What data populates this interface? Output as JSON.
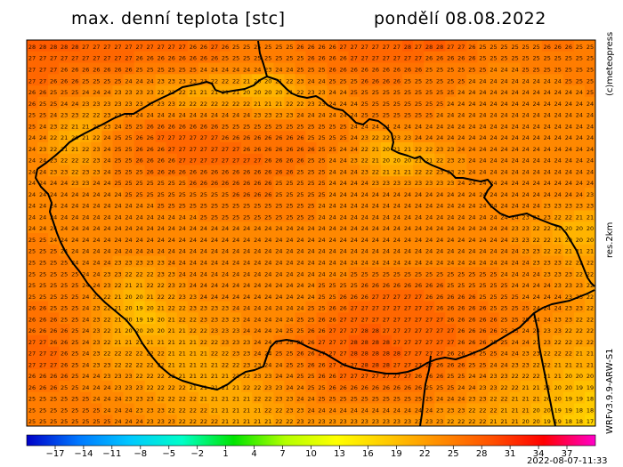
{
  "header": {
    "title": "max. denní teplota [stc]",
    "date": "pondělí 08.08.2022"
  },
  "side_labels": {
    "credit": "(c)meteopress",
    "resolution": "res.2km",
    "model": "WRFv3.9.9-ARW-S1"
  },
  "footer": {
    "run_time": "2022-08-07-11:33"
  },
  "colorbar": {
    "ticks": [
      "−17",
      "−14",
      "−11",
      "−8",
      "−5",
      "−2",
      "1",
      "4",
      "7",
      "10",
      "13",
      "16",
      "19",
      "22",
      "25",
      "28",
      "31",
      "34",
      "37"
    ],
    "tick_values": [
      -17,
      -14,
      -11,
      -8,
      -5,
      -2,
      1,
      4,
      7,
      10,
      13,
      16,
      19,
      22,
      25,
      28,
      31,
      34,
      37
    ],
    "min": -20,
    "max": 40,
    "stops": [
      "#0000c8",
      "#0078ff",
      "#00c8ff",
      "#00ffc8",
      "#00e400",
      "#b4ff00",
      "#ffff00",
      "#ffc800",
      "#ff8c00",
      "#ff5000",
      "#ff0000",
      "#ff00c8"
    ]
  },
  "grid_values": [
    [
      28,
      28,
      28,
      28,
      28,
      27,
      27,
      27,
      27,
      27,
      27,
      27,
      27,
      27,
      27,
      26,
      26,
      27,
      26,
      25,
      25,
      25,
      25,
      25,
      25,
      26,
      26,
      26,
      26,
      27,
      27,
      27,
      27,
      27,
      27,
      28,
      27,
      28,
      28,
      27,
      27,
      26,
      25,
      25,
      25,
      25,
      25,
      25,
      26,
      26,
      26,
      25,
      25
    ],
    [
      27,
      27,
      27,
      27,
      27,
      27,
      27,
      27,
      27,
      27,
      26,
      26,
      26,
      26,
      26,
      26,
      26,
      26,
      25,
      25,
      25,
      25,
      25,
      25,
      25,
      25,
      26,
      26,
      26,
      26,
      27,
      27,
      27,
      27,
      27,
      27,
      27,
      26,
      26,
      26,
      26,
      26,
      25,
      25,
      25,
      25,
      25,
      25,
      25,
      25,
      25,
      25,
      25
    ],
    [
      27,
      27,
      27,
      26,
      26,
      26,
      26,
      26,
      26,
      26,
      25,
      25,
      25,
      25,
      25,
      25,
      24,
      24,
      24,
      24,
      24,
      24,
      23,
      24,
      24,
      25,
      25,
      25,
      26,
      26,
      26,
      26,
      26,
      26,
      26,
      26,
      26,
      25,
      25,
      25,
      25,
      25,
      25,
      24,
      24,
      24,
      25,
      25,
      25,
      25,
      25,
      25,
      25
    ],
    [
      27,
      27,
      26,
      26,
      26,
      25,
      25,
      25,
      25,
      24,
      24,
      24,
      23,
      23,
      23,
      23,
      23,
      22,
      22,
      22,
      21,
      20,
      20,
      21,
      22,
      23,
      24,
      24,
      25,
      25,
      25,
      26,
      26,
      26,
      26,
      25,
      25,
      25,
      25,
      25,
      25,
      24,
      24,
      24,
      24,
      24,
      24,
      24,
      24,
      24,
      25,
      25,
      25
    ],
    [
      26,
      26,
      25,
      25,
      25,
      24,
      24,
      24,
      23,
      23,
      23,
      23,
      22,
      22,
      22,
      21,
      21,
      21,
      21,
      21,
      20,
      20,
      20,
      20,
      21,
      22,
      23,
      23,
      24,
      24,
      25,
      25,
      25,
      25,
      25,
      25,
      25,
      25,
      25,
      25,
      24,
      24,
      24,
      24,
      24,
      24,
      24,
      24,
      24,
      24,
      24,
      24,
      25
    ],
    [
      26,
      25,
      25,
      24,
      24,
      23,
      23,
      23,
      23,
      23,
      23,
      23,
      23,
      23,
      22,
      22,
      22,
      22,
      22,
      22,
      22,
      21,
      21,
      21,
      22,
      22,
      23,
      23,
      24,
      24,
      24,
      25,
      25,
      25,
      25,
      25,
      25,
      25,
      25,
      24,
      24,
      24,
      24,
      24,
      24,
      24,
      24,
      24,
      24,
      24,
      24,
      24,
      24
    ],
    [
      25,
      25,
      24,
      23,
      23,
      22,
      22,
      23,
      23,
      24,
      24,
      24,
      24,
      24,
      24,
      24,
      24,
      24,
      24,
      24,
      24,
      23,
      23,
      23,
      23,
      24,
      24,
      24,
      24,
      24,
      24,
      25,
      25,
      25,
      25,
      25,
      25,
      25,
      24,
      24,
      24,
      24,
      24,
      24,
      24,
      24,
      24,
      24,
      24,
      24,
      24,
      24,
      24
    ],
    [
      25,
      24,
      23,
      22,
      21,
      21,
      22,
      23,
      24,
      25,
      25,
      26,
      26,
      26,
      26,
      26,
      26,
      26,
      25,
      25,
      25,
      25,
      25,
      25,
      25,
      25,
      25,
      25,
      25,
      25,
      24,
      24,
      24,
      24,
      24,
      24,
      24,
      24,
      24,
      24,
      24,
      24,
      24,
      24,
      24,
      24,
      24,
      24,
      24,
      24,
      24,
      24,
      24
    ],
    [
      24,
      24,
      22,
      21,
      20,
      21,
      22,
      24,
      25,
      25,
      26,
      26,
      27,
      27,
      27,
      27,
      27,
      27,
      26,
      26,
      26,
      26,
      26,
      26,
      26,
      26,
      25,
      25,
      25,
      25,
      24,
      23,
      22,
      22,
      23,
      23,
      24,
      24,
      24,
      24,
      24,
      24,
      24,
      24,
      24,
      24,
      24,
      24,
      24,
      24,
      24,
      24,
      24
    ],
    [
      24,
      23,
      22,
      21,
      21,
      22,
      23,
      24,
      25,
      25,
      26,
      26,
      26,
      27,
      27,
      27,
      27,
      27,
      27,
      27,
      26,
      26,
      26,
      26,
      26,
      26,
      26,
      25,
      25,
      24,
      24,
      22,
      21,
      20,
      21,
      21,
      22,
      22,
      23,
      23,
      24,
      24,
      24,
      24,
      24,
      24,
      24,
      24,
      24,
      24,
      24,
      24,
      24
    ],
    [
      24,
      24,
      23,
      22,
      22,
      22,
      23,
      24,
      25,
      25,
      26,
      26,
      26,
      26,
      27,
      27,
      27,
      27,
      27,
      27,
      27,
      27,
      26,
      26,
      26,
      26,
      25,
      25,
      24,
      24,
      23,
      22,
      21,
      20,
      20,
      20,
      21,
      21,
      22,
      23,
      23,
      24,
      24,
      24,
      24,
      24,
      24,
      24,
      24,
      24,
      24,
      24,
      24
    ],
    [
      24,
      24,
      23,
      23,
      22,
      23,
      23,
      24,
      25,
      25,
      25,
      26,
      26,
      26,
      26,
      26,
      26,
      26,
      26,
      26,
      26,
      26,
      26,
      26,
      26,
      25,
      25,
      25,
      24,
      24,
      24,
      23,
      22,
      21,
      21,
      21,
      22,
      22,
      23,
      23,
      23,
      24,
      24,
      24,
      24,
      24,
      24,
      24,
      24,
      24,
      24,
      24,
      24
    ],
    [
      24,
      24,
      24,
      24,
      23,
      23,
      24,
      24,
      25,
      25,
      25,
      25,
      25,
      25,
      25,
      26,
      26,
      26,
      26,
      26,
      26,
      26,
      26,
      25,
      25,
      25,
      25,
      25,
      24,
      24,
      24,
      24,
      23,
      23,
      23,
      23,
      23,
      23,
      23,
      23,
      24,
      24,
      24,
      24,
      24,
      24,
      24,
      24,
      24,
      24,
      24,
      24,
      24
    ],
    [
      24,
      24,
      24,
      24,
      24,
      24,
      24,
      24,
      24,
      25,
      25,
      25,
      25,
      25,
      25,
      25,
      25,
      25,
      25,
      26,
      26,
      26,
      26,
      25,
      25,
      25,
      25,
      25,
      24,
      24,
      24,
      24,
      24,
      24,
      24,
      24,
      24,
      24,
      24,
      24,
      24,
      24,
      24,
      24,
      24,
      24,
      24,
      24,
      24,
      24,
      24,
      24,
      23
    ],
    [
      24,
      24,
      24,
      24,
      24,
      24,
      24,
      24,
      24,
      24,
      24,
      24,
      25,
      25,
      25,
      25,
      25,
      25,
      25,
      25,
      25,
      25,
      25,
      25,
      25,
      25,
      25,
      24,
      24,
      24,
      24,
      24,
      24,
      24,
      24,
      24,
      24,
      24,
      24,
      24,
      24,
      24,
      24,
      24,
      24,
      24,
      24,
      24,
      23,
      23,
      23,
      23,
      23
    ],
    [
      24,
      24,
      24,
      24,
      24,
      24,
      24,
      24,
      24,
      24,
      24,
      24,
      24,
      24,
      24,
      24,
      25,
      25,
      25,
      25,
      25,
      25,
      25,
      25,
      25,
      25,
      25,
      24,
      24,
      24,
      24,
      24,
      24,
      24,
      24,
      24,
      24,
      24,
      24,
      24,
      24,
      24,
      24,
      24,
      24,
      24,
      23,
      23,
      23,
      22,
      22,
      21,
      21
    ],
    [
      24,
      24,
      24,
      24,
      24,
      24,
      24,
      24,
      24,
      24,
      24,
      24,
      24,
      24,
      24,
      24,
      24,
      24,
      24,
      24,
      24,
      24,
      24,
      24,
      24,
      24,
      24,
      24,
      24,
      24,
      24,
      24,
      24,
      24,
      24,
      24,
      24,
      24,
      24,
      24,
      24,
      24,
      24,
      24,
      24,
      23,
      23,
      22,
      22,
      21,
      20,
      20,
      20
    ],
    [
      25,
      25,
      24,
      24,
      24,
      24,
      24,
      24,
      24,
      24,
      24,
      24,
      24,
      24,
      24,
      24,
      24,
      24,
      24,
      24,
      24,
      24,
      24,
      24,
      24,
      24,
      24,
      24,
      24,
      24,
      24,
      24,
      24,
      24,
      24,
      24,
      24,
      24,
      24,
      24,
      24,
      24,
      24,
      24,
      24,
      23,
      23,
      22,
      22,
      21,
      20,
      20,
      20
    ],
    [
      25,
      25,
      25,
      24,
      24,
      24,
      24,
      24,
      24,
      24,
      24,
      24,
      24,
      24,
      24,
      24,
      24,
      24,
      24,
      24,
      24,
      24,
      24,
      24,
      24,
      24,
      24,
      24,
      24,
      24,
      24,
      24,
      24,
      24,
      24,
      24,
      24,
      24,
      24,
      24,
      24,
      24,
      24,
      24,
      24,
      24,
      23,
      23,
      22,
      22,
      21,
      21,
      21
    ],
    [
      25,
      25,
      25,
      25,
      24,
      24,
      24,
      24,
      23,
      23,
      23,
      23,
      23,
      24,
      24,
      24,
      24,
      24,
      24,
      24,
      24,
      24,
      24,
      24,
      24,
      24,
      24,
      24,
      24,
      24,
      24,
      24,
      24,
      24,
      24,
      24,
      24,
      24,
      24,
      24,
      24,
      24,
      24,
      24,
      24,
      24,
      24,
      23,
      23,
      23,
      22,
      22,
      22
    ],
    [
      25,
      25,
      25,
      25,
      25,
      24,
      24,
      23,
      23,
      22,
      22,
      22,
      23,
      23,
      24,
      24,
      24,
      24,
      24,
      24,
      24,
      24,
      24,
      24,
      24,
      24,
      24,
      24,
      24,
      24,
      25,
      25,
      25,
      25,
      25,
      25,
      25,
      25,
      25,
      25,
      25,
      25,
      25,
      25,
      24,
      24,
      24,
      24,
      23,
      23,
      23,
      22,
      22
    ],
    [
      25,
      25,
      25,
      25,
      25,
      24,
      24,
      23,
      22,
      21,
      21,
      22,
      22,
      23,
      23,
      24,
      24,
      24,
      24,
      24,
      24,
      24,
      24,
      24,
      24,
      24,
      24,
      25,
      25,
      25,
      25,
      26,
      26,
      26,
      26,
      26,
      26,
      26,
      26,
      25,
      25,
      25,
      25,
      25,
      25,
      24,
      24,
      24,
      24,
      23,
      23,
      23,
      22
    ],
    [
      25,
      25,
      25,
      25,
      25,
      24,
      23,
      22,
      21,
      20,
      20,
      21,
      22,
      22,
      23,
      23,
      24,
      24,
      24,
      24,
      24,
      24,
      24,
      24,
      24,
      24,
      24,
      25,
      25,
      26,
      26,
      26,
      27,
      27,
      27,
      27,
      27,
      26,
      26,
      26,
      26,
      26,
      25,
      25,
      25,
      25,
      24,
      24,
      24,
      24,
      23,
      23,
      22
    ],
    [
      26,
      26,
      25,
      25,
      25,
      24,
      23,
      22,
      21,
      20,
      19,
      20,
      21,
      22,
      22,
      23,
      23,
      23,
      23,
      24,
      24,
      24,
      24,
      24,
      24,
      24,
      25,
      25,
      26,
      26,
      27,
      27,
      27,
      27,
      27,
      27,
      27,
      27,
      26,
      26,
      26,
      26,
      26,
      25,
      25,
      25,
      25,
      24,
      24,
      24,
      23,
      23,
      22
    ],
    [
      26,
      26,
      26,
      25,
      25,
      24,
      23,
      22,
      21,
      20,
      19,
      19,
      20,
      21,
      22,
      22,
      23,
      23,
      23,
      23,
      24,
      24,
      24,
      24,
      24,
      25,
      25,
      26,
      26,
      27,
      27,
      27,
      27,
      27,
      27,
      27,
      27,
      27,
      27,
      26,
      26,
      26,
      26,
      26,
      25,
      25,
      25,
      24,
      24,
      23,
      23,
      22,
      22
    ],
    [
      26,
      26,
      26,
      26,
      25,
      24,
      23,
      22,
      21,
      20,
      20,
      20,
      20,
      21,
      21,
      22,
      22,
      23,
      23,
      23,
      24,
      24,
      24,
      24,
      25,
      25,
      26,
      26,
      27,
      27,
      27,
      28,
      28,
      27,
      27,
      27,
      27,
      27,
      27,
      27,
      26,
      26,
      26,
      26,
      25,
      25,
      24,
      24,
      23,
      23,
      22,
      22,
      22
    ],
    [
      27,
      27,
      26,
      26,
      25,
      24,
      23,
      22,
      21,
      21,
      21,
      21,
      21,
      21,
      21,
      21,
      22,
      22,
      23,
      23,
      23,
      24,
      24,
      25,
      25,
      26,
      26,
      27,
      27,
      27,
      28,
      28,
      28,
      28,
      27,
      27,
      27,
      27,
      27,
      27,
      26,
      26,
      26,
      25,
      25,
      24,
      24,
      23,
      23,
      22,
      22,
      22,
      22
    ],
    [
      27,
      27,
      27,
      26,
      25,
      24,
      23,
      22,
      22,
      22,
      22,
      22,
      22,
      21,
      21,
      21,
      21,
      22,
      22,
      23,
      23,
      24,
      24,
      25,
      25,
      26,
      26,
      27,
      27,
      27,
      28,
      28,
      28,
      28,
      28,
      27,
      27,
      27,
      27,
      26,
      26,
      26,
      25,
      25,
      24,
      24,
      23,
      23,
      22,
      22,
      22,
      21,
      21
    ],
    [
      27,
      27,
      27,
      26,
      25,
      24,
      23,
      23,
      22,
      22,
      22,
      22,
      22,
      21,
      21,
      21,
      21,
      21,
      22,
      22,
      23,
      23,
      24,
      24,
      25,
      25,
      26,
      26,
      27,
      27,
      27,
      28,
      28,
      28,
      27,
      27,
      27,
      27,
      26,
      26,
      26,
      25,
      25,
      24,
      24,
      23,
      23,
      22,
      22,
      21,
      21,
      21,
      21
    ],
    [
      26,
      26,
      26,
      26,
      25,
      24,
      24,
      23,
      23,
      23,
      22,
      22,
      22,
      22,
      21,
      21,
      21,
      21,
      21,
      22,
      22,
      23,
      23,
      24,
      24,
      25,
      25,
      26,
      26,
      27,
      27,
      27,
      27,
      27,
      27,
      27,
      26,
      26,
      26,
      25,
      25,
      24,
      24,
      23,
      23,
      22,
      22,
      22,
      21,
      21,
      20,
      20,
      20
    ],
    [
      26,
      26,
      26,
      25,
      25,
      24,
      24,
      24,
      23,
      23,
      23,
      22,
      22,
      22,
      22,
      21,
      21,
      21,
      21,
      21,
      22,
      22,
      23,
      23,
      24,
      24,
      25,
      25,
      26,
      26,
      26,
      26,
      26,
      26,
      26,
      26,
      26,
      25,
      25,
      25,
      24,
      24,
      23,
      23,
      22,
      22,
      21,
      21,
      21,
      20,
      20,
      19,
      19
    ],
    [
      25,
      25,
      25,
      25,
      25,
      25,
      24,
      24,
      24,
      23,
      23,
      23,
      22,
      22,
      22,
      22,
      21,
      21,
      21,
      21,
      21,
      22,
      22,
      23,
      23,
      24,
      24,
      25,
      25,
      25,
      25,
      25,
      25,
      25,
      25,
      25,
      25,
      25,
      24,
      24,
      24,
      23,
      23,
      22,
      22,
      21,
      21,
      21,
      20,
      20,
      19,
      19,
      18
    ],
    [
      25,
      25,
      25,
      25,
      25,
      25,
      25,
      24,
      24,
      24,
      23,
      23,
      23,
      22,
      22,
      22,
      22,
      21,
      21,
      21,
      21,
      21,
      22,
      22,
      23,
      23,
      24,
      24,
      24,
      24,
      24,
      24,
      24,
      24,
      24,
      24,
      24,
      24,
      23,
      23,
      23,
      22,
      22,
      22,
      21,
      21,
      21,
      20,
      20,
      19,
      19,
      18,
      18
    ],
    [
      25,
      25,
      25,
      25,
      25,
      25,
      25,
      25,
      24,
      24,
      24,
      23,
      23,
      23,
      22,
      22,
      22,
      22,
      21,
      21,
      21,
      21,
      21,
      22,
      22,
      23,
      23,
      23,
      23,
      23,
      23,
      23,
      23,
      23,
      23,
      23,
      23,
      23,
      23,
      22,
      22,
      22,
      22,
      21,
      21,
      21,
      20,
      20,
      19,
      19,
      18,
      18,
      17
    ]
  ]
}
